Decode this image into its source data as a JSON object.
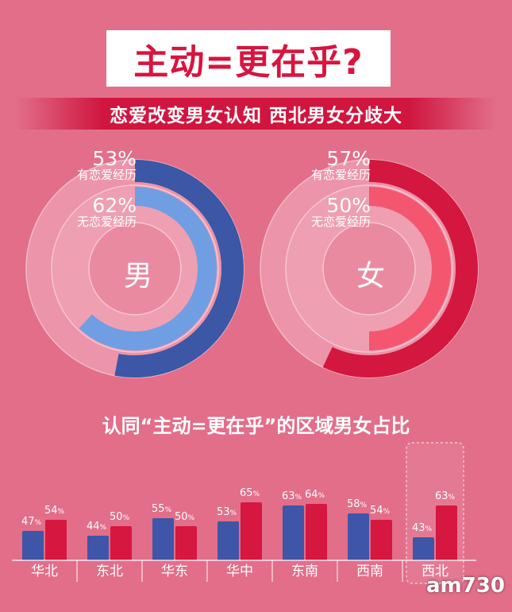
{
  "title": "主动=更在乎?",
  "subtitle": "恋爱改变男女认知  西北男女分歧大",
  "donuts": [
    {
      "gender": "男",
      "outer": {
        "value": 53,
        "label": "有恋爱经历",
        "color": "#3b57a5"
      },
      "inner": {
        "value": 62,
        "label": "无恋爱经历",
        "color": "#6f9ee3"
      }
    },
    {
      "gender": "女",
      "outer": {
        "value": 57,
        "label": "有恋爱经历",
        "color": "#d4173e"
      },
      "inner": {
        "value": 50,
        "label": "无恋爱经历",
        "color": "#f4566f"
      }
    }
  ],
  "chart_data": {
    "type": "bar",
    "title": "认同“主动=更在乎”的区域男女占比",
    "categories": [
      "华北",
      "东北",
      "华东",
      "华中",
      "东南",
      "西南",
      "西北"
    ],
    "series": [
      {
        "values": [
          47,
          44,
          55,
          53,
          63,
          58,
          43
        ],
        "color": "#3e55a8"
      },
      {
        "values": [
          54,
          50,
          50,
          65,
          64,
          54,
          63
        ],
        "color": "#d6173f"
      }
    ],
    "value_suffix": "%",
    "highlighted_category": "西北"
  },
  "watermark": "am730"
}
